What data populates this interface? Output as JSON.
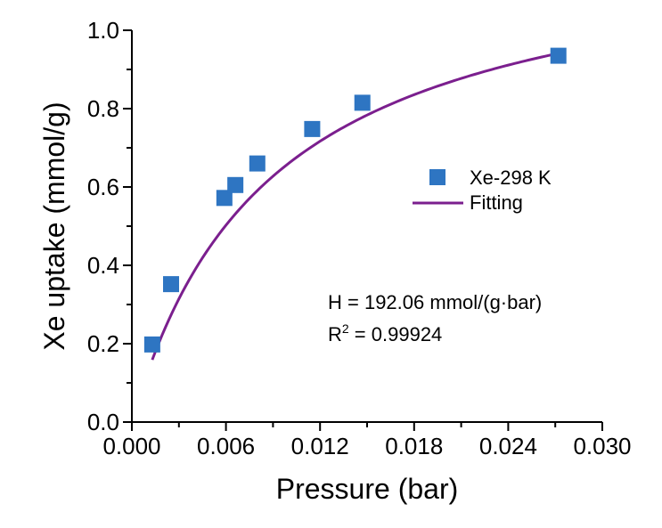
{
  "chart_data": {
    "type": "scatter",
    "xlabel": "Pressure (bar)",
    "ylabel": "Xe uptake (mmol/g)",
    "xlim": [
      0.0,
      0.03
    ],
    "ylim": [
      0.0,
      1.0
    ],
    "xticks": [
      "0.000",
      "0.006",
      "0.012",
      "0.018",
      "0.024",
      "0.030"
    ],
    "yticks": [
      "0.0",
      "0.2",
      "0.4",
      "0.6",
      "0.8",
      "1.0"
    ],
    "grid": false,
    "legend_position": "right",
    "series": [
      {
        "name": "Xe-298 K",
        "kind": "scatter",
        "marker": "square",
        "color": "#2E75C2",
        "x": [
          0.0013,
          0.0025,
          0.0059,
          0.0066,
          0.008,
          0.0115,
          0.0147,
          0.0272
        ],
        "y": [
          0.198,
          0.352,
          0.572,
          0.605,
          0.66,
          0.748,
          0.815,
          0.935
        ]
      },
      {
        "name": "Fitting",
        "kind": "line",
        "color": "#7B1F8E",
        "x": [
          0.0013,
          0.0016,
          0.002,
          0.0025,
          0.003,
          0.0035,
          0.004,
          0.005,
          0.006,
          0.007,
          0.008,
          0.009,
          0.01,
          0.011,
          0.012,
          0.013,
          0.014,
          0.015,
          0.016,
          0.017,
          0.018,
          0.019,
          0.02,
          0.021,
          0.022,
          0.023,
          0.024,
          0.025,
          0.026,
          0.027
        ],
        "y": [
          0.2,
          0.24,
          0.288,
          0.34,
          0.384,
          0.422,
          0.455,
          0.509,
          0.554,
          0.591,
          0.623,
          0.65,
          0.675,
          0.697,
          0.716,
          0.734,
          0.75,
          0.765,
          0.779,
          0.792,
          0.804,
          0.815,
          0.826,
          0.836,
          0.846,
          0.855,
          0.864,
          0.873,
          0.881,
          0.933
        ]
      }
    ],
    "annotations": {
      "henry": "H = 192.06 mmol/(g·bar)",
      "r2_prefix": "R",
      "r2_sup": "2",
      "r2_value": " = 0.99924"
    }
  }
}
